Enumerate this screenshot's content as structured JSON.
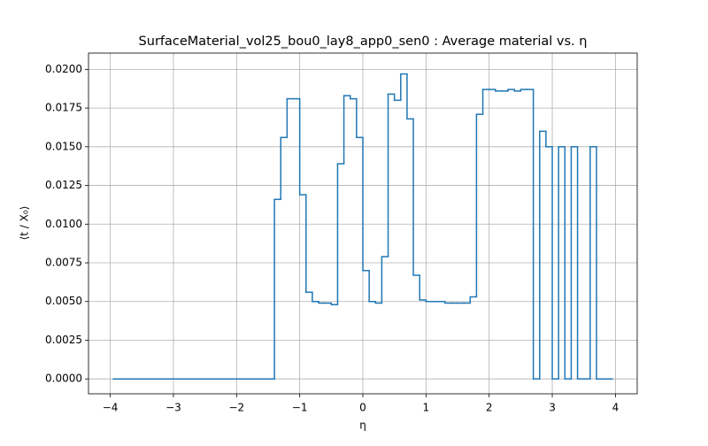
{
  "chart_data": {
    "type": "histogram",
    "title": "SurfaceMaterial_vol25_bou0_lay8_app0_sen0 : Average material vs. η",
    "xlabel": "η",
    "ylabel": "⟨t / X₀⟩",
    "color": "#1f77b4",
    "grid": true,
    "bins": [
      -3.95,
      -1.4,
      -1.3,
      -1.2,
      -1.1,
      -1.0,
      -0.9,
      -0.8,
      -0.7,
      -0.6,
      -0.5,
      -0.4,
      -0.3,
      -0.2,
      -0.1,
      0.0,
      0.1,
      0.2,
      0.3,
      0.4,
      0.5,
      0.6,
      0.7,
      0.8,
      0.9,
      1.0,
      1.1,
      1.2,
      1.3,
      1.4,
      1.5,
      1.6,
      1.7,
      1.8,
      1.9,
      2.0,
      2.1,
      2.2,
      2.3,
      2.4,
      2.5,
      2.6,
      2.7,
      2.8,
      2.9,
      3.0,
      3.1,
      3.2,
      3.3,
      3.4,
      3.5,
      3.6,
      3.7,
      3.95
    ],
    "values": [
      0,
      0.0116,
      0.0156,
      0.0181,
      0.0181,
      0.0119,
      0.0056,
      0.005,
      0.0049,
      0.0049,
      0.0048,
      0.0139,
      0.0183,
      0.0181,
      0.0156,
      0.007,
      0.005,
      0.0049,
      0.0079,
      0.0184,
      0.018,
      0.0197,
      0.0168,
      0.0067,
      0.0051,
      0.005,
      0.005,
      0.005,
      0.0049,
      0.0049,
      0.0049,
      0.0049,
      0.0053,
      0.0171,
      0.0187,
      0.0187,
      0.0186,
      0.0186,
      0.0187,
      0.0186,
      0.0187,
      0.0187,
      0,
      0.016,
      0.015,
      0,
      0.015,
      0,
      0.015,
      0,
      0,
      0.015,
      0
    ],
    "xlim": [
      -4.345,
      4.345
    ],
    "xticks": [
      {
        "value": -4,
        "label": "−4"
      },
      {
        "value": -3,
        "label": "−3"
      },
      {
        "value": -2,
        "label": "−2"
      },
      {
        "value": -1,
        "label": "−1"
      },
      0,
      1,
      2,
      3,
      4
    ],
    "ylim": [
      -0.00096,
      0.02105
    ],
    "yticks": [
      {
        "value": 0,
        "label": "0.0000"
      },
      {
        "value": 0.0025,
        "label": "0.0025"
      },
      {
        "value": 0.005,
        "label": "0.0050"
      },
      {
        "value": 0.0075,
        "label": "0.0075"
      },
      {
        "value": 0.01,
        "label": "0.0100"
      },
      {
        "value": 0.0125,
        "label": "0.0125"
      },
      {
        "value": 0.015,
        "label": "0.0150"
      },
      {
        "value": 0.0175,
        "label": "0.0175"
      },
      {
        "value": 0.02,
        "label": "0.0200"
      }
    ]
  }
}
